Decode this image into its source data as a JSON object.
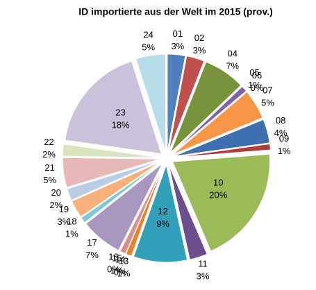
{
  "chart_data": {
    "type": "pie",
    "title": "ID importierte aus der Welt im 2015 (prov.)",
    "categories": [
      "01",
      "02",
      "04",
      "05",
      "06",
      "07",
      "08",
      "09",
      "10",
      "11",
      "12",
      "13",
      "14",
      "15",
      "16",
      "17",
      "18",
      "19",
      "20",
      "21",
      "22",
      "23",
      "24"
    ],
    "values": [
      3,
      3,
      7,
      1,
      0,
      5,
      4,
      1,
      20,
      3,
      9,
      1,
      0,
      1,
      0,
      7,
      1,
      3,
      2,
      5,
      2,
      18,
      5
    ],
    "value_labels": [
      "3%",
      "3%",
      "7%",
      "1%",
      "0%",
      "5%",
      "4%",
      "1%",
      "20%",
      "3%",
      "9%",
      "1%",
      "0%",
      "1%",
      "0%",
      "7%",
      "1%",
      "3%",
      "2%",
      "5%",
      "2%",
      "18%",
      "5%"
    ],
    "colors": [
      "#4f81bd",
      "#c0504d",
      "#77933c",
      "#8064a2",
      "#4bacc6",
      "#f79646",
      "#3f6fae",
      "#b23b38",
      "#9bbb59",
      "#6a4f8c",
      "#31a0b8",
      "#e8822b",
      "#7ea6d8",
      "#d98f8c",
      "#b8d08c",
      "#a897c0",
      "#80c7d8",
      "#fab07a",
      "#b9cce4",
      "#e6b9b8",
      "#d7e4bd",
      "#ccc1da",
      "#b7dde8"
    ]
  }
}
